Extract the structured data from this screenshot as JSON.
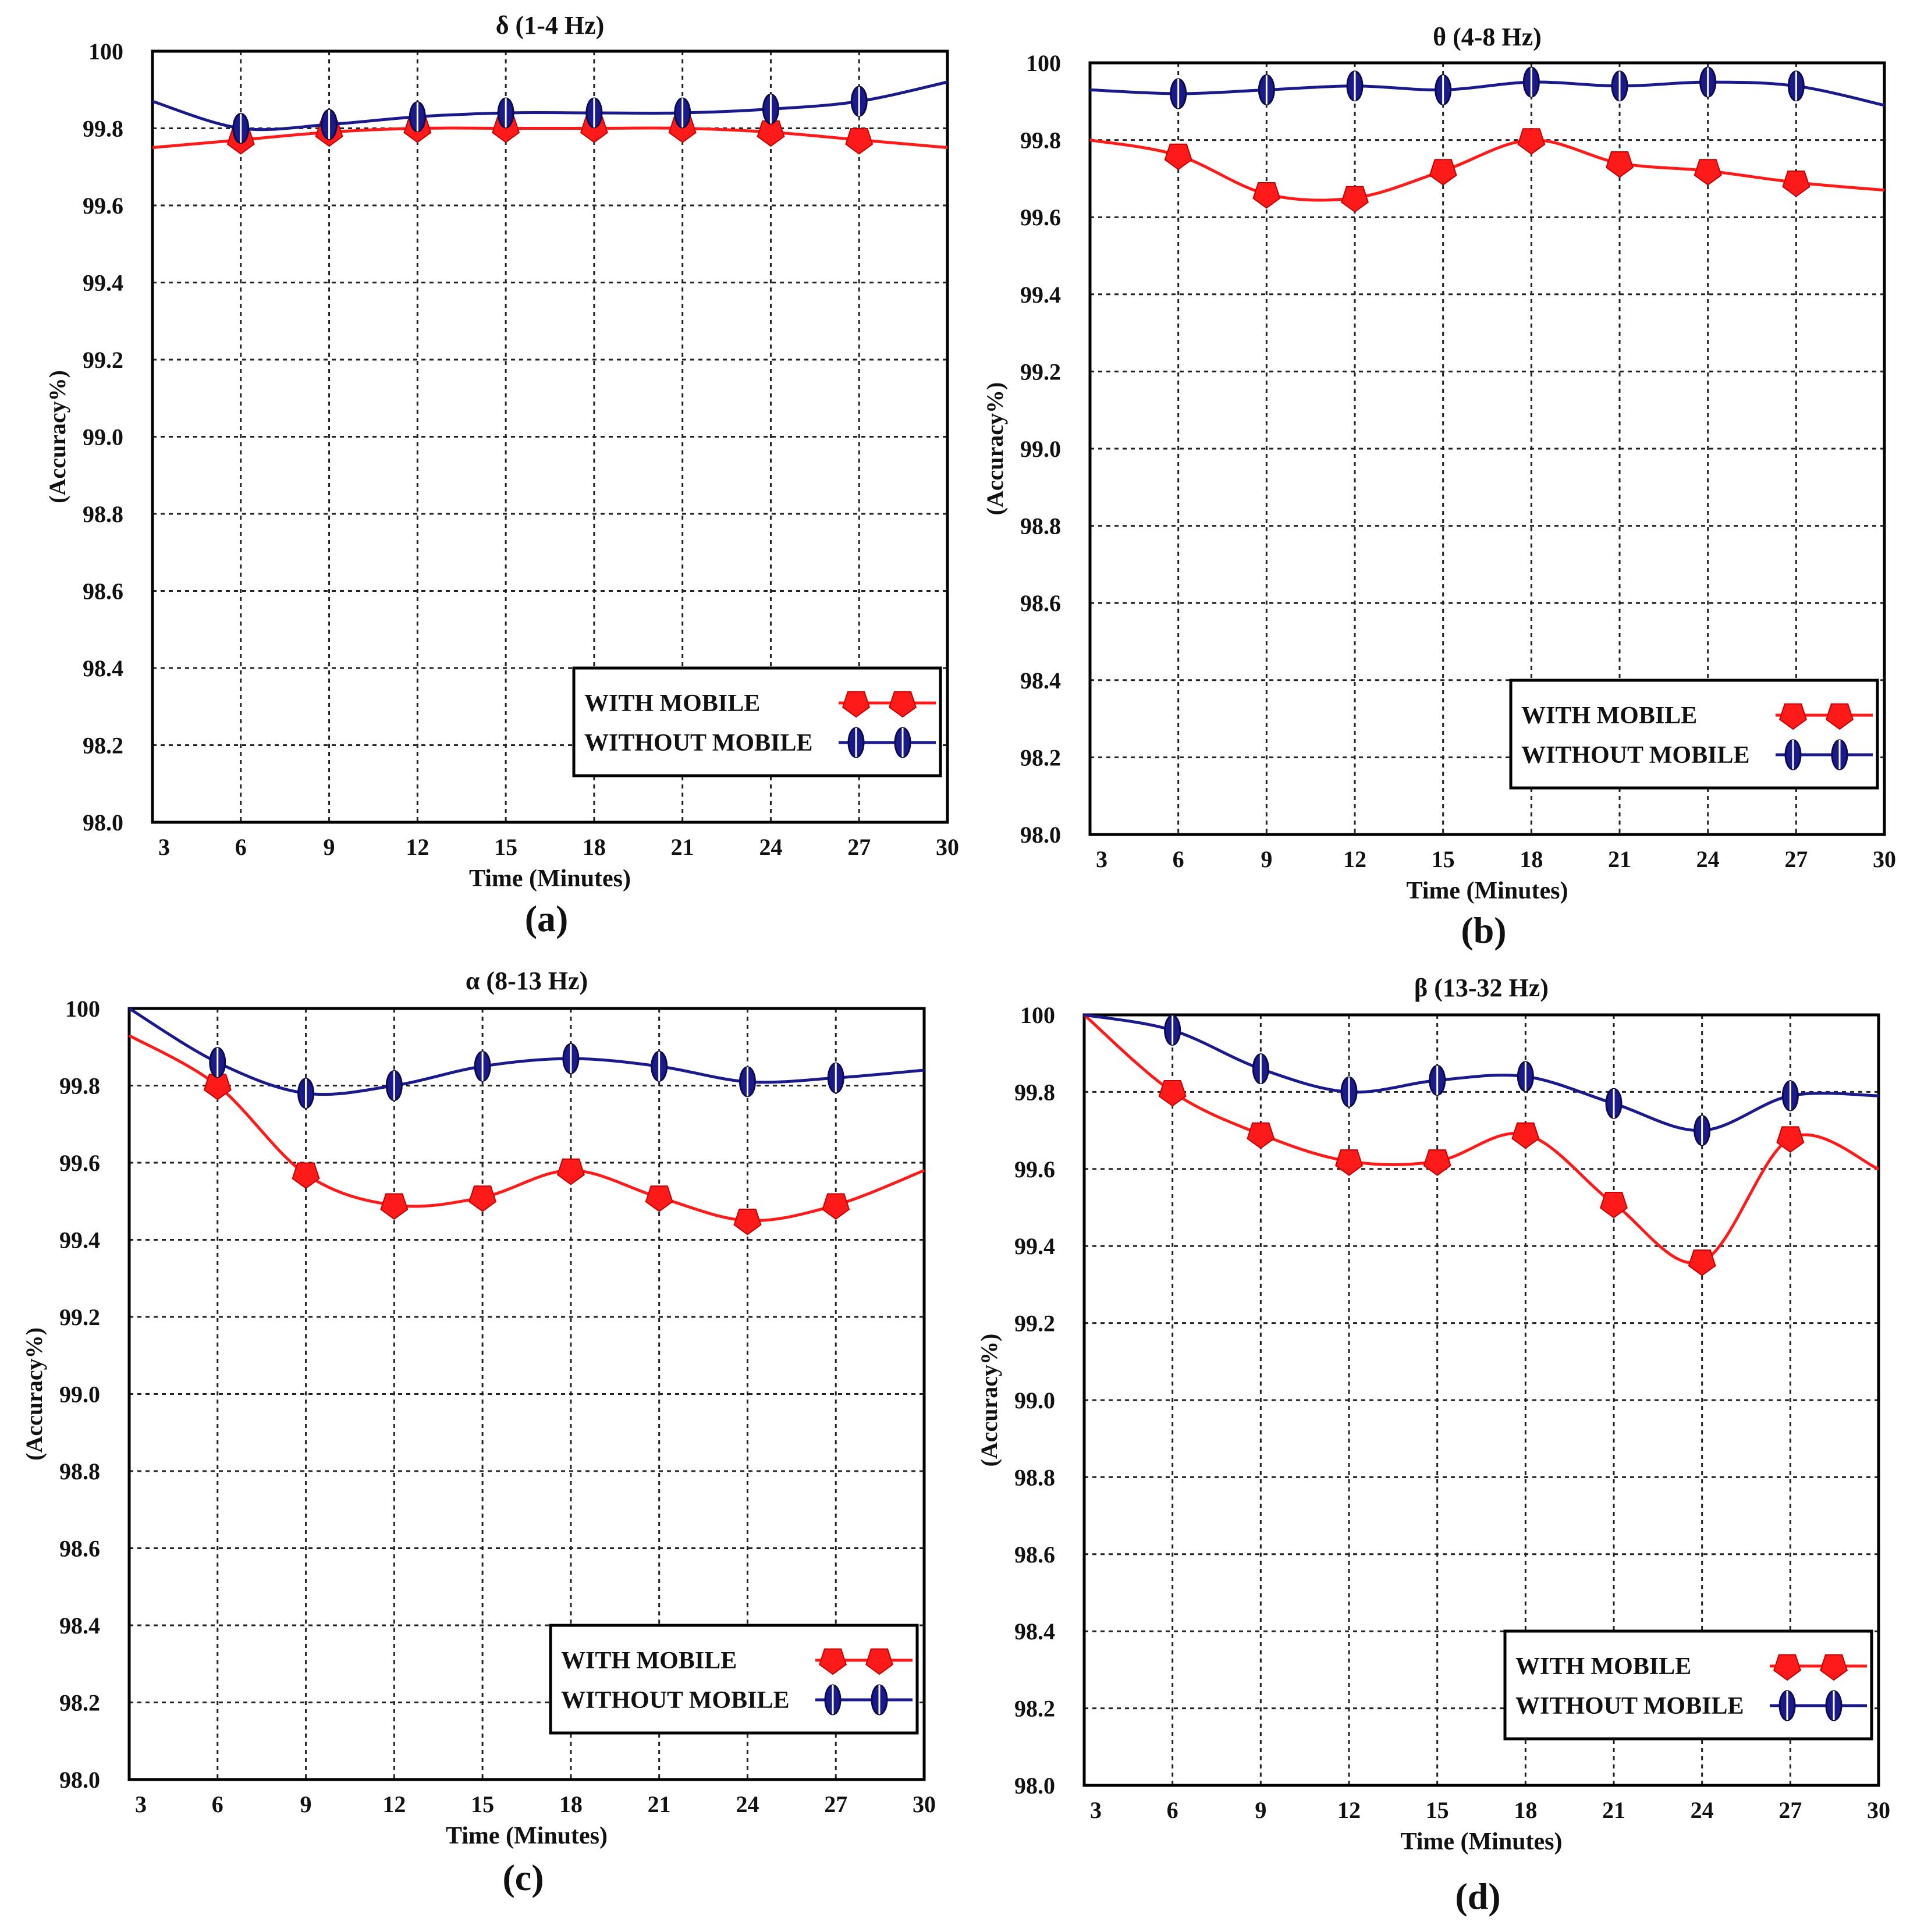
{
  "figure_labels": [
    "(a)",
    "(b)",
    "(c)",
    "(d)"
  ],
  "colors": {
    "with_mobile": "#ff1a1a",
    "without_mobile": "#1a1a8c",
    "marker_edge": "#0b0b4d",
    "grid": "#222222"
  },
  "chart_data": [
    {
      "type": "line",
      "title": "δ (1-4 Hz)",
      "xlabel": "Time (Minutes)",
      "ylabel": "(Accuracy%)",
      "x": [
        3,
        6,
        9,
        12,
        15,
        18,
        21,
        24,
        27,
        30
      ],
      "xlim": [
        3,
        30
      ],
      "ylim": [
        98.0,
        100.0
      ],
      "xticks": [
        "3",
        "6",
        "9",
        "12",
        "15",
        "18",
        "21",
        "24",
        "27",
        "30"
      ],
      "yticks": [
        "98.0",
        "98.2",
        "98.4",
        "98.6",
        "98.8",
        "99.0",
        "99.2",
        "99.4",
        "99.6",
        "99.8",
        "100"
      ],
      "grid": true,
      "legend_position": "bottom-right",
      "series": [
        {
          "name": "WITH MOBILE",
          "values": [
            99.75,
            99.77,
            99.79,
            99.8,
            99.8,
            99.8,
            99.8,
            99.79,
            99.77,
            99.75
          ]
        },
        {
          "name": "WITHOUT MOBILE",
          "values": [
            99.87,
            99.8,
            99.81,
            99.83,
            99.84,
            99.84,
            99.84,
            99.85,
            99.87,
            99.92
          ]
        }
      ]
    },
    {
      "type": "line",
      "title": "θ (4-8 Hz)",
      "xlabel": "Time (Minutes)",
      "ylabel": "(Accuracy%)",
      "x": [
        3,
        6,
        9,
        12,
        15,
        18,
        21,
        24,
        27,
        30
      ],
      "xlim": [
        3,
        30
      ],
      "ylim": [
        98.0,
        100.0
      ],
      "xticks": [
        "3",
        "6",
        "9",
        "12",
        "15",
        "18",
        "21",
        "24",
        "27",
        "30"
      ],
      "yticks": [
        "98.0",
        "98.2",
        "98.4",
        "98.6",
        "98.8",
        "99.0",
        "99.2",
        "99.4",
        "99.6",
        "99.8",
        "100"
      ],
      "grid": true,
      "legend_position": "bottom-right",
      "series": [
        {
          "name": "WITH MOBILE",
          "values": [
            99.8,
            99.76,
            99.66,
            99.65,
            99.72,
            99.8,
            99.74,
            99.72,
            99.69,
            99.67
          ]
        },
        {
          "name": "WITHOUT MOBILE",
          "values": [
            99.93,
            99.92,
            99.93,
            99.94,
            99.93,
            99.95,
            99.94,
            99.95,
            99.94,
            99.89
          ]
        }
      ]
    },
    {
      "type": "line",
      "title": "α (8-13 Hz)",
      "xlabel": "Time (Minutes)",
      "ylabel": "(Accuracy%)",
      "x": [
        3,
        6,
        9,
        12,
        15,
        18,
        21,
        24,
        27,
        30
      ],
      "xlim": [
        3,
        30
      ],
      "ylim": [
        98.0,
        100.0
      ],
      "xticks": [
        "3",
        "6",
        "9",
        "12",
        "15",
        "18",
        "21",
        "24",
        "27",
        "30"
      ],
      "yticks": [
        "98.0",
        "98.2",
        "98.4",
        "98.6",
        "98.8",
        "99.0",
        "99.2",
        "99.4",
        "99.6",
        "99.8",
        "100"
      ],
      "grid": true,
      "legend_position": "bottom-right",
      "series": [
        {
          "name": "WITH MOBILE",
          "values": [
            99.93,
            99.8,
            99.57,
            99.49,
            99.51,
            99.58,
            99.51,
            99.45,
            99.49,
            99.58
          ]
        },
        {
          "name": "WITHOUT MOBILE",
          "values": [
            100.0,
            99.86,
            99.78,
            99.8,
            99.85,
            99.87,
            99.85,
            99.81,
            99.82,
            99.84
          ]
        }
      ]
    },
    {
      "type": "line",
      "title": "β (13-32 Hz)",
      "xlabel": "Time (Minutes)",
      "ylabel": "(Accuracy%)",
      "x": [
        3,
        6,
        9,
        12,
        15,
        18,
        21,
        24,
        27,
        30
      ],
      "xlim": [
        3,
        30
      ],
      "ylim": [
        98.0,
        100.0
      ],
      "xticks": [
        "3",
        "6",
        "9",
        "12",
        "15",
        "18",
        "21",
        "24",
        "27",
        "30"
      ],
      "yticks": [
        "98.0",
        "98.2",
        "98.4",
        "98.6",
        "98.8",
        "99.0",
        "99.2",
        "99.4",
        "99.6",
        "99.8",
        "100"
      ],
      "grid": true,
      "legend_position": "bottom-right",
      "series": [
        {
          "name": "WITH MOBILE",
          "values": [
            100.0,
            99.8,
            99.69,
            99.62,
            99.62,
            99.69,
            99.51,
            99.36,
            99.68,
            99.6
          ]
        },
        {
          "name": "WITHOUT MOBILE",
          "values": [
            100.0,
            99.96,
            99.86,
            99.8,
            99.83,
            99.84,
            99.77,
            99.7,
            99.79,
            99.79
          ]
        }
      ]
    }
  ]
}
